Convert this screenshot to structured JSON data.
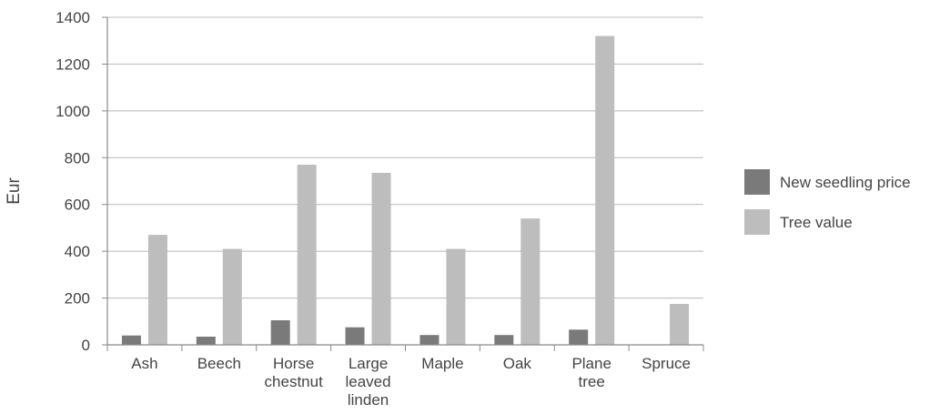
{
  "chart_data": {
    "type": "bar",
    "ylabel": "Eur",
    "xlabel": "",
    "ylim": [
      0,
      1400
    ],
    "yticks": [
      0,
      200,
      400,
      600,
      800,
      1000,
      1200,
      1400
    ],
    "grid": true,
    "legend_position": "right",
    "categories": [
      [
        "Ash"
      ],
      [
        "Beech"
      ],
      [
        "Horse",
        "chestnut"
      ],
      [
        "Large",
        "leaved",
        "linden"
      ],
      [
        "Maple"
      ],
      [
        "Oak"
      ],
      [
        "Plane",
        "tree"
      ],
      [
        "Spruce"
      ]
    ],
    "series": [
      {
        "name": "New seedling price",
        "color": "#7a7a7a",
        "values": [
          40,
          35,
          105,
          75,
          42,
          42,
          65,
          0
        ]
      },
      {
        "name": "Tree value",
        "color": "#bdbdbd",
        "values": [
          470,
          410,
          770,
          735,
          410,
          540,
          1320,
          175
        ]
      }
    ]
  }
}
